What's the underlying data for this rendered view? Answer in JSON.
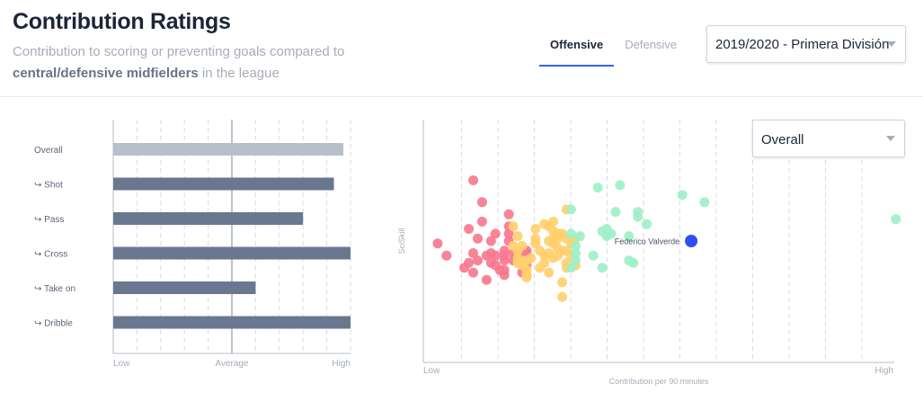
{
  "header": {
    "title": "Contribution Ratings",
    "subtitle_line1": "Contribution to scoring or preventing goals compared to",
    "subtitle_highlight": "central/defensive midfielders",
    "subtitle_tail": " in the league",
    "tabs": [
      {
        "label": "Offensive",
        "active": true
      },
      {
        "label": "Defensive",
        "active": false
      }
    ],
    "season_select": {
      "value": "2019/2020 - Primera División"
    }
  },
  "bar_chart": {
    "x_ticks": [
      "Low",
      "Average",
      "High"
    ],
    "categories": [
      {
        "label": "Overall",
        "value": 0.97,
        "highlight": true
      },
      {
        "label": "↪ Shot",
        "value": 0.93,
        "highlight": false
      },
      {
        "label": "↪ Pass",
        "value": 0.8,
        "highlight": false
      },
      {
        "label": "↪ Cross",
        "value": 1.0,
        "highlight": false
      },
      {
        "label": "↪ Take on",
        "value": 0.6,
        "highlight": false
      },
      {
        "label": "↪ Dribble",
        "value": 1.0,
        "highlight": false
      }
    ],
    "average_value": 0.5,
    "colors": {
      "overall": "#b7bfcb",
      "bar": "#6a7790",
      "avg_line": "#a7afba",
      "grid": "#d6dae0"
    }
  },
  "scatter": {
    "metric_select": {
      "value": "Overall"
    },
    "x_label": "Contribution per 90 minutes",
    "y_label": "SciSkill",
    "x_ticks": [
      "Low",
      "High"
    ],
    "highlighted_player": "Federico Valverde",
    "colors": {
      "low": "#f7778d",
      "mid": "#ffcf6b",
      "high": "#9cf0c6",
      "player": "#2f4ff1",
      "grid": "#d6dae0"
    }
  },
  "chart_data": [
    {
      "type": "bar",
      "title": "",
      "xlabel": "",
      "ylabel": "",
      "categories": [
        "Overall",
        "Shot",
        "Pass",
        "Cross",
        "Take on",
        "Dribble"
      ],
      "values": [
        0.97,
        0.93,
        0.8,
        1.0,
        0.6,
        1.0
      ],
      "xlim": [
        0,
        1
      ],
      "x_tick_labels": [
        "Low",
        "Average",
        "High"
      ],
      "grid": true
    },
    {
      "type": "scatter",
      "title": "",
      "xlabel": "Contribution per 90 minutes",
      "ylabel": "SciSkill",
      "xlim": [
        0,
        1
      ],
      "ylim": [
        0,
        1
      ],
      "x_tick_labels": [
        "Low",
        "High"
      ],
      "grid": true,
      "annotations": [
        {
          "text": "Federico Valverde",
          "x": 0.58,
          "y": 0.5
        }
      ],
      "series": [
        {
          "group": "low",
          "points": [
            [
              0.01,
              0.49
            ],
            [
              0.03,
              0.44
            ],
            [
              0.07,
              0.39
            ],
            [
              0.08,
              0.55
            ],
            [
              0.08,
              0.41
            ],
            [
              0.09,
              0.37
            ],
            [
              0.09,
              0.45
            ],
            [
              0.09,
              0.75
            ],
            [
              0.1,
              0.51
            ],
            [
              0.1,
              0.42
            ],
            [
              0.11,
              0.66
            ],
            [
              0.11,
              0.58
            ],
            [
              0.12,
              0.44
            ],
            [
              0.12,
              0.34
            ],
            [
              0.13,
              0.41
            ],
            [
              0.13,
              0.45
            ],
            [
              0.13,
              0.5
            ],
            [
              0.14,
              0.53
            ],
            [
              0.14,
              0.4
            ],
            [
              0.14,
              0.44
            ],
            [
              0.15,
              0.38
            ],
            [
              0.16,
              0.44
            ],
            [
              0.16,
              0.42
            ],
            [
              0.16,
              0.38
            ],
            [
              0.16,
              0.46
            ],
            [
              0.16,
              0.36
            ],
            [
              0.17,
              0.5
            ],
            [
              0.17,
              0.56
            ],
            [
              0.17,
              0.53
            ],
            [
              0.17,
              0.61
            ],
            [
              0.18,
              0.42
            ],
            [
              0.18,
              0.45
            ],
            [
              0.19,
              0.44
            ],
            [
              0.2,
              0.37
            ],
            [
              0.21,
              0.46
            ],
            [
              0.21,
              0.4
            ],
            [
              0.21,
              0.45
            ]
          ]
        },
        {
          "group": "mid",
          "points": [
            [
              0.18,
              0.48
            ],
            [
              0.18,
              0.56
            ],
            [
              0.19,
              0.52
            ],
            [
              0.19,
              0.46
            ],
            [
              0.19,
              0.43
            ],
            [
              0.19,
              0.41
            ],
            [
              0.2,
              0.48
            ],
            [
              0.2,
              0.41
            ],
            [
              0.21,
              0.36
            ],
            [
              0.2,
              0.4
            ],
            [
              0.21,
              0.42
            ],
            [
              0.21,
              0.38
            ],
            [
              0.21,
              0.35
            ],
            [
              0.22,
              0.43
            ],
            [
              0.23,
              0.49
            ],
            [
              0.23,
              0.55
            ],
            [
              0.23,
              0.51
            ],
            [
              0.24,
              0.46
            ],
            [
              0.24,
              0.39
            ],
            [
              0.25,
              0.41
            ],
            [
              0.25,
              0.44
            ],
            [
              0.25,
              0.57
            ],
            [
              0.26,
              0.5
            ],
            [
              0.26,
              0.37
            ],
            [
              0.26,
              0.45
            ],
            [
              0.26,
              0.56
            ],
            [
              0.27,
              0.54
            ],
            [
              0.27,
              0.49
            ],
            [
              0.27,
              0.51
            ],
            [
              0.27,
              0.58
            ],
            [
              0.27,
              0.43
            ],
            [
              0.28,
              0.51
            ],
            [
              0.28,
              0.47
            ],
            [
              0.28,
              0.53
            ],
            [
              0.28,
              0.44
            ],
            [
              0.29,
              0.53
            ],
            [
              0.29,
              0.27
            ],
            [
              0.29,
              0.33
            ],
            [
              0.29,
              0.46
            ],
            [
              0.3,
              0.41
            ],
            [
              0.3,
              0.46
            ],
            [
              0.3,
              0.39
            ],
            [
              0.3,
              0.63
            ],
            [
              0.3,
              0.51
            ],
            [
              0.31,
              0.49
            ],
            [
              0.31,
              0.44
            ],
            [
              0.32,
              0.4
            ],
            [
              0.32,
              0.51
            ]
          ]
        },
        {
          "group": "high",
          "points": [
            [
              0.31,
              0.39
            ],
            [
              0.31,
              0.53
            ],
            [
              0.32,
              0.45
            ],
            [
              0.31,
              0.63
            ],
            [
              0.32,
              0.48
            ],
            [
              0.32,
              0.42
            ],
            [
              0.33,
              0.52
            ],
            [
              0.36,
              0.44
            ],
            [
              0.37,
              0.72
            ],
            [
              0.38,
              0.54
            ],
            [
              0.38,
              0.39
            ],
            [
              0.39,
              0.55
            ],
            [
              0.39,
              0.52
            ],
            [
              0.4,
              0.53
            ],
            [
              0.41,
              0.62
            ],
            [
              0.42,
              0.73
            ],
            [
              0.44,
              0.52
            ],
            [
              0.44,
              0.42
            ],
            [
              0.45,
              0.41
            ],
            [
              0.46,
              0.62
            ],
            [
              0.46,
              0.6
            ],
            [
              0.48,
              0.57
            ],
            [
              0.56,
              0.69
            ],
            [
              0.61,
              0.66
            ],
            [
              1.04,
              0.59
            ]
          ]
        },
        {
          "group": "player",
          "name": "Federico Valverde",
          "points": [
            [
              0.58,
              0.5
            ]
          ]
        }
      ]
    }
  ]
}
